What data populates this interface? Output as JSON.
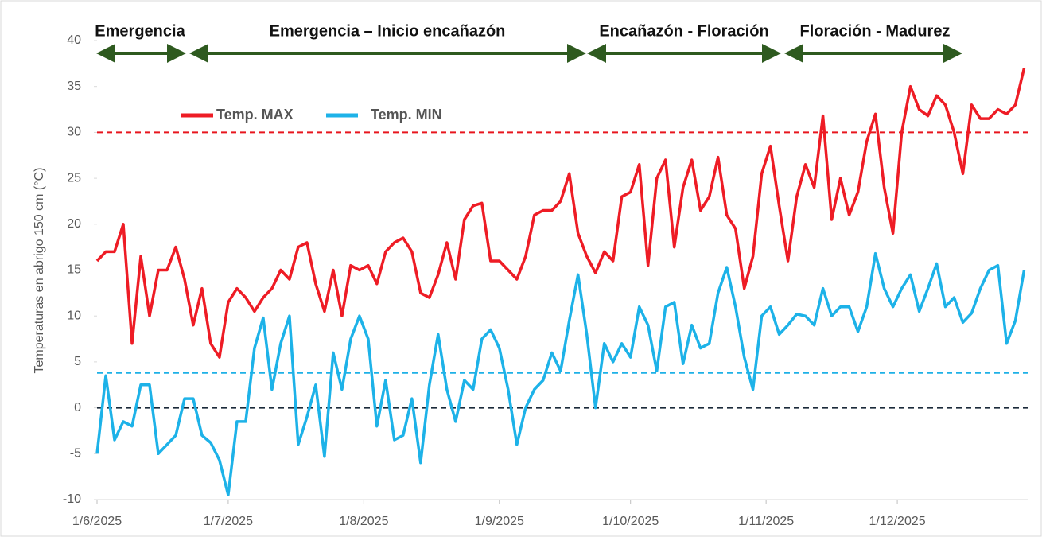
{
  "chart_data": {
    "type": "line",
    "y_axis_label": "Temperaturas en abrigo 150 cm (°C)",
    "phases": [
      "Emergencia",
      "Emergencia – Inicio encañazón",
      "Encañazón - Floración",
      "Floración - Madurez"
    ],
    "phase_color": "#2e5a1f",
    "xlim": [
      "1/6/2025",
      "31/12/2025"
    ],
    "xticks": [
      "1/6/2025",
      "1/7/2025",
      "1/8/2025",
      "1/9/2025",
      "1/10/2025",
      "1/11/2025",
      "1/12/2025"
    ],
    "ylim": [
      -10,
      40
    ],
    "yticks": [
      -10,
      -5,
      0,
      5,
      10,
      15,
      20,
      25,
      30,
      35,
      40
    ],
    "grid": false,
    "legend": "upper left",
    "reference_lines": [
      {
        "value": 30,
        "color": "#e8161e"
      },
      {
        "value": 3.8,
        "color": "#1fb1e6"
      },
      {
        "value": 0,
        "color": "#1b2a3a"
      }
    ],
    "x": [
      "1/6/2025",
      "3/6/2025",
      "5/6/2025",
      "7/6/2025",
      "9/6/2025",
      "11/6/2025",
      "13/6/2025",
      "15/6/2025",
      "17/6/2025",
      "19/6/2025",
      "21/6/2025",
      "23/6/2025",
      "25/6/2025",
      "27/6/2025",
      "29/6/2025",
      "1/7/2025",
      "3/7/2025",
      "5/7/2025",
      "7/7/2025",
      "9/7/2025",
      "11/7/2025",
      "13/7/2025",
      "15/7/2025",
      "17/7/2025",
      "19/7/2025",
      "21/7/2025",
      "23/7/2025",
      "25/7/2025",
      "27/7/2025",
      "29/7/2025",
      "31/7/2025",
      "2/8/2025",
      "4/8/2025",
      "6/8/2025",
      "8/8/2025",
      "10/8/2025",
      "12/8/2025",
      "14/8/2025",
      "16/8/2025",
      "18/8/2025",
      "20/8/2025",
      "22/8/2025",
      "24/8/2025",
      "26/8/2025",
      "28/8/2025",
      "30/8/2025",
      "1/9/2025",
      "3/9/2025",
      "5/9/2025",
      "7/9/2025",
      "9/9/2025",
      "11/9/2025",
      "13/9/2025",
      "15/9/2025",
      "17/9/2025",
      "19/9/2025",
      "21/9/2025",
      "23/9/2025",
      "25/9/2025",
      "27/9/2025",
      "29/9/2025",
      "1/10/2025",
      "3/10/2025",
      "5/10/2025",
      "7/10/2025",
      "9/10/2025",
      "11/10/2025",
      "13/10/2025",
      "15/10/2025",
      "17/10/2025",
      "19/10/2025",
      "21/10/2025",
      "23/10/2025",
      "25/10/2025",
      "27/10/2025",
      "29/10/2025",
      "31/10/2025",
      "2/11/2025",
      "4/11/2025",
      "6/11/2025",
      "8/11/2025",
      "10/11/2025",
      "12/11/2025",
      "14/11/2025",
      "16/11/2025",
      "18/11/2025",
      "20/11/2025",
      "22/11/2025",
      "24/11/2025",
      "26/11/2025",
      "28/11/2025",
      "30/11/2025",
      "2/12/2025",
      "4/12/2025",
      "6/12/2025",
      "8/12/2025",
      "10/12/2025",
      "12/12/2025",
      "14/12/2025",
      "16/12/2025",
      "18/12/2025",
      "20/12/2025",
      "22/12/2025",
      "24/12/2025",
      "26/12/2025",
      "28/12/2025",
      "30/12/2025"
    ],
    "series": [
      {
        "name": "Temp. MAX",
        "color": "#ee1c25",
        "values": [
          16,
          17,
          17,
          20,
          7,
          16.5,
          10,
          15,
          15,
          17.5,
          14,
          9,
          13,
          7,
          5.5,
          11.5,
          13,
          12,
          10.5,
          12,
          13,
          15,
          14,
          17.5,
          18,
          13.5,
          10.5,
          15,
          10,
          15.5,
          15,
          15.5,
          13.5,
          17,
          18,
          18.5,
          17,
          12.5,
          12,
          14.5,
          18,
          14,
          20.5,
          22,
          22.3,
          16,
          16,
          15,
          14,
          16.5,
          21,
          21.5,
          21.5,
          22.5,
          25.5,
          19,
          16.5,
          14.7,
          17,
          16,
          23,
          23.5,
          26.5,
          15.5,
          25,
          27,
          17.5,
          24,
          27,
          21.5,
          23,
          27.3,
          21,
          19.5,
          13,
          16.5,
          25.5,
          28.5,
          22,
          16,
          23,
          26.5,
          24,
          31.8,
          20.5,
          25,
          21,
          23.5,
          29,
          32,
          24,
          19,
          30,
          35,
          32.5,
          31.8,
          34,
          33,
          30,
          25.5,
          33,
          31.5,
          31.5,
          32.5,
          32,
          33,
          37
        ]
      },
      {
        "name": "Temp. MIN",
        "color": "#1db2e8",
        "values": [
          -5,
          3.5,
          -3.5,
          -1.5,
          -2,
          2.5,
          2.5,
          -5,
          -4,
          -3,
          1,
          1,
          -3,
          -3.8,
          -5.7,
          -9.5,
          -1.5,
          -1.5,
          6.5,
          9.8,
          2,
          7,
          10,
          -4,
          -1,
          2.5,
          -5.3,
          6,
          2,
          7.5,
          10,
          7.5,
          -2,
          3,
          -3.5,
          -3,
          1,
          -6,
          2.5,
          8,
          2,
          -1.5,
          3,
          2,
          7.5,
          8.5,
          6.5,
          2,
          -4,
          0,
          2,
          3,
          6,
          4,
          9.5,
          14.5,
          8,
          0,
          7,
          5,
          7,
          5.5,
          11,
          9,
          4,
          11,
          11.5,
          4.8,
          9,
          6.5,
          7,
          12.5,
          15.3,
          11,
          5.5,
          2,
          10,
          11,
          8,
          9,
          10.2,
          10,
          9,
          13,
          10,
          11,
          11,
          8.3,
          11,
          16.8,
          13,
          11,
          13,
          14.5,
          10.5,
          13,
          15.7,
          11,
          12,
          9.3,
          10.3,
          13,
          15,
          15.5,
          7,
          9.5,
          15
        ]
      }
    ]
  }
}
